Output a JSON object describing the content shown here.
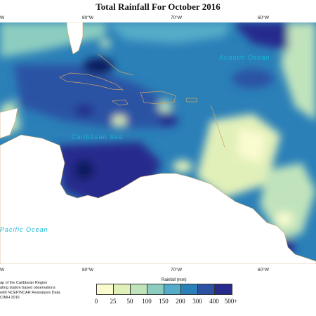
{
  "title": "Total Rainfall For October 2016",
  "top_ticks": [
    "80°W",
    "70°W",
    "60°W"
  ],
  "top_left_tick": "W",
  "bottom_ticks": [
    "80°W",
    "70°W",
    "60°W"
  ],
  "bottom_left_tick": "W",
  "labels": {
    "atlantic": "Atlantic Ocean",
    "caribbean": "Caribbean Sea",
    "pacific": "Pacific Ocean"
  },
  "credit_lines": [
    "ap of the Caribbean Region",
    "ating station based observations",
    "with NCEP/NCAR Reanalysis Data.",
    "CIMH 2016"
  ],
  "legend": {
    "title": "Rainfall (mm)",
    "ticks": [
      "0",
      "25",
      "50",
      "100",
      "150",
      "200",
      "300",
      "400",
      "500+"
    ],
    "colors": [
      "#fbfbd0",
      "#e1f0b9",
      "#c0e3bb",
      "#8ccdc0",
      "#54acc8",
      "#2b80b8",
      "#2c52a4",
      "#262b8c",
      "#0f1b5e"
    ]
  },
  "colors": {
    "land": "#ffffff",
    "coastline": "#c9a36a",
    "label_text": "#17b7d6"
  }
}
